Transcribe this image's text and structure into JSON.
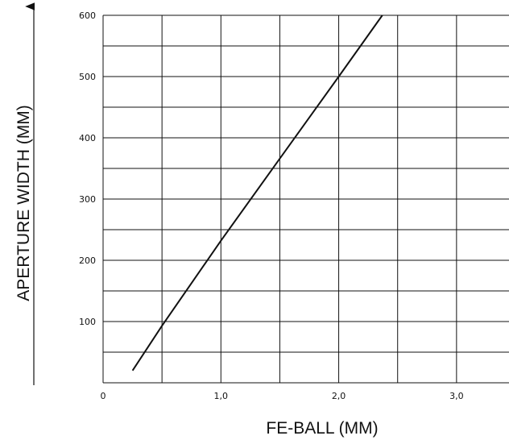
{
  "chart_data": {
    "type": "line",
    "title": "",
    "xlabel": "FE-BALL (MM)",
    "ylabel": "APERTURE WIDTH (MM)",
    "xlim": [
      0,
      3.5
    ],
    "ylim": [
      0,
      600
    ],
    "x_ticks": [
      {
        "value": 0,
        "label": "0"
      },
      {
        "value": 1.0,
        "label": "1,0"
      },
      {
        "value": 2.0,
        "label": "2,0"
      },
      {
        "value": 3.0,
        "label": "3,0"
      }
    ],
    "y_ticks": [
      {
        "value": 100,
        "label": "100"
      },
      {
        "value": 200,
        "label": "200"
      },
      {
        "value": 300,
        "label": "300"
      },
      {
        "value": 400,
        "label": "400"
      },
      {
        "value": 500,
        "label": "500"
      },
      {
        "value": 600,
        "label": "600"
      }
    ],
    "x_grid": [
      0.5,
      1.0,
      1.5,
      2.0,
      2.5,
      3.0
    ],
    "y_grid": [
      50,
      100,
      150,
      200,
      250,
      300,
      350,
      400,
      450,
      500,
      550,
      600
    ],
    "grid": true,
    "series": [
      {
        "x": [
          0.25,
          0.5,
          1.0,
          1.5,
          2.0,
          2.37
        ],
        "y": [
          20,
          93,
          232,
          366,
          500,
          600
        ],
        "color": "#111111"
      }
    ]
  }
}
